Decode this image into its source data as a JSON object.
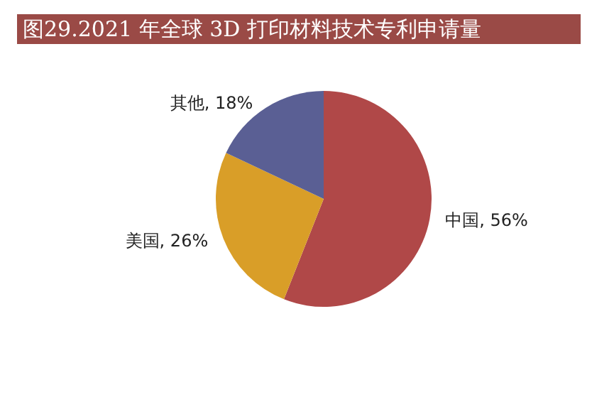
{
  "chart_data": {
    "type": "pie",
    "title": "图29.2021 年全球 3D 打印材料技术专利申请量",
    "categories": [
      "中国",
      "美国",
      "其他"
    ],
    "values": [
      56,
      26,
      18
    ],
    "value_labels": [
      ", 56%",
      ", 26%",
      ", 18%"
    ],
    "colors": [
      "#b04848",
      "#d99e28",
      "#5a5f94"
    ],
    "legend": false
  }
}
